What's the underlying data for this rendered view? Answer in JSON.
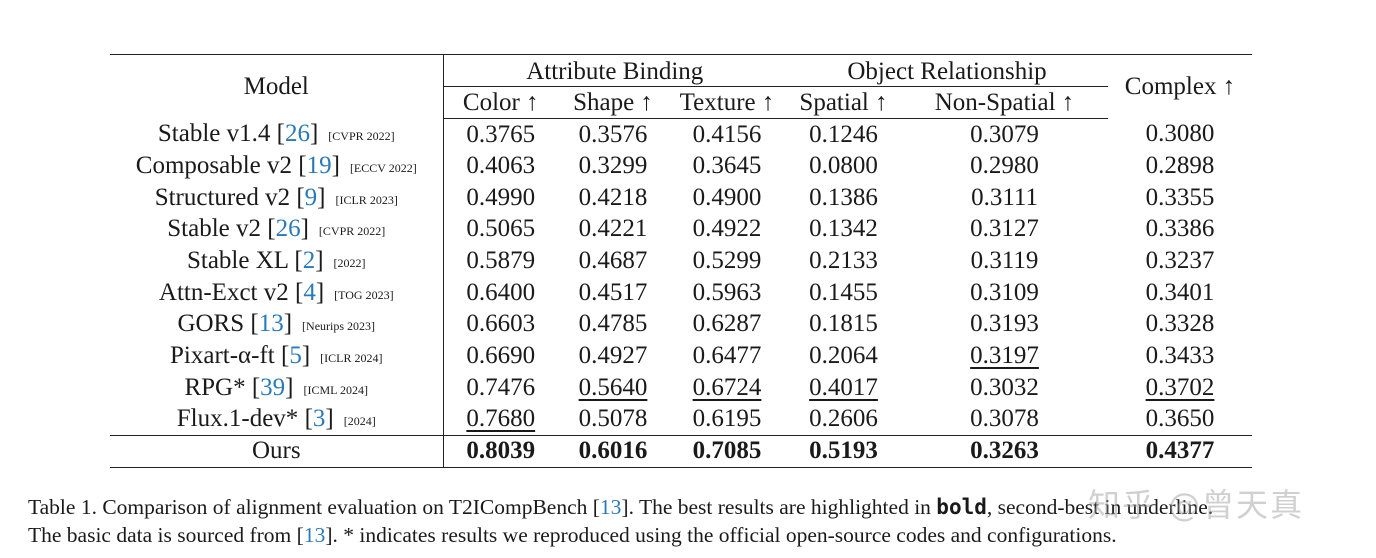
{
  "table": {
    "model_header": "Model",
    "groups": [
      {
        "label": "Attribute Binding"
      },
      {
        "label": "Object Relationship"
      }
    ],
    "complex_header": "Complex ↑",
    "columns": [
      "Color ↑",
      "Shape ↑",
      "Texture ↑",
      "Spatial ↑",
      "Non-Spatial ↑"
    ],
    "rows": [
      {
        "name": "Stable v1.4",
        "ref": "26",
        "venue": "[CVPR 2022]",
        "values": [
          "0.3765",
          "0.3576",
          "0.4156",
          "0.1246",
          "0.3079",
          "0.3080"
        ],
        "underline": []
      },
      {
        "name": "Composable v2",
        "ref": "19",
        "venue": "[ECCV 2022]",
        "values": [
          "0.4063",
          "0.3299",
          "0.3645",
          "0.0800",
          "0.2980",
          "0.2898"
        ],
        "underline": []
      },
      {
        "name": "Structured v2",
        "ref": "9",
        "venue": "[ICLR 2023]",
        "values": [
          "0.4990",
          "0.4218",
          "0.4900",
          "0.1386",
          "0.3111",
          "0.3355"
        ],
        "underline": []
      },
      {
        "name": "Stable v2",
        "ref": "26",
        "venue": "[CVPR 2022]",
        "values": [
          "0.5065",
          "0.4221",
          "0.4922",
          "0.1342",
          "0.3127",
          "0.3386"
        ],
        "underline": []
      },
      {
        "name": "Stable XL",
        "ref": "2",
        "venue": "[2022]",
        "values": [
          "0.5879",
          "0.4687",
          "0.5299",
          "0.2133",
          "0.3119",
          "0.3237"
        ],
        "underline": []
      },
      {
        "name": "Attn-Exct v2",
        "ref": "4",
        "venue": "[TOG 2023]",
        "values": [
          "0.6400",
          "0.4517",
          "0.5963",
          "0.1455",
          "0.3109",
          "0.3401"
        ],
        "underline": []
      },
      {
        "name": "GORS",
        "ref": "13",
        "venue": "[Neurips 2023]",
        "values": [
          "0.6603",
          "0.4785",
          "0.6287",
          "0.1815",
          "0.3193",
          "0.3328"
        ],
        "underline": []
      },
      {
        "name": "Pixart-α-ft",
        "ref": "5",
        "venue": "[ICLR 2024]",
        "values": [
          "0.6690",
          "0.4927",
          "0.6477",
          "0.2064",
          "0.3197",
          "0.3433"
        ],
        "underline": [
          4
        ]
      },
      {
        "name": "RPG*",
        "ref": "39",
        "venue": "[ICML 2024]",
        "values": [
          "0.7476",
          "0.5640",
          "0.6724",
          "0.4017",
          "0.3032",
          "0.3702"
        ],
        "underline": [
          1,
          2,
          3,
          5
        ]
      },
      {
        "name": "Flux.1-dev*",
        "ref": "3",
        "venue": "[2024]",
        "values": [
          "0.7680",
          "0.5078",
          "0.6195",
          "0.2606",
          "0.3078",
          "0.3650"
        ],
        "underline": [
          0
        ]
      }
    ],
    "ours": {
      "name": "Ours",
      "values": [
        "0.8039",
        "0.6016",
        "0.7085",
        "0.5193",
        "0.3263",
        "0.4377"
      ]
    }
  },
  "caption": {
    "line1_a": "Table 1. Comparison of alignment evaluation on T2ICompBench [",
    "line1_ref": "13",
    "line1_b": "]. The best results are highlighted in ",
    "line1_bold": "bold",
    "line1_c": ", second-best in underline.",
    "line2_a": "The basic data is sourced from [",
    "line2_ref": "13",
    "line2_b": "]. * indicates results we reproduced using the official open-source codes and configurations."
  },
  "watermark": "知乎 @曾天真"
}
